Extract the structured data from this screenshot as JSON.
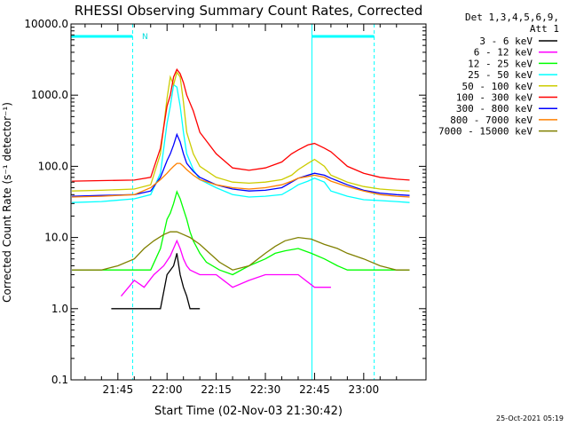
{
  "chart_data": {
    "type": "line",
    "title": "RHESSI Observing Summary Count Rates, Corrected",
    "xlabel": "Start Time (02-Nov-03 21:30:42)",
    "ylabel": "Corrected Count Rate (s⁻¹ detector⁻¹)",
    "yscale": "log",
    "ylim": [
      0.1,
      10000
    ],
    "y_ticks": [
      "0.1",
      "1.0",
      "10.0",
      "100.0",
      "1000.0",
      "10000.0"
    ],
    "x_ticks": [
      "21:45",
      "22:00",
      "22:15",
      "22:30",
      "22:45",
      "23:00"
    ],
    "x_tick_minutes": [
      45,
      60,
      75,
      90,
      105,
      120
    ],
    "xlim_minutes": [
      30.7,
      139
    ],
    "legend_header": [
      "Det 1,3,4,5,6,9,",
      "Att 1"
    ],
    "night_bars": [
      [
        30.7,
        49.5
      ],
      [
        104.2,
        123.2
      ]
    ],
    "saa_label": "N",
    "footer": "25-Oct-2021 05:19",
    "series": [
      {
        "name": "3 - 6 keV",
        "color": "#000000",
        "x": [
          43,
          49,
          55,
          58,
          60,
          62,
          63,
          64,
          65,
          66,
          67,
          70
        ],
        "y": [
          1.0,
          1.0,
          1.0,
          1.0,
          3.0,
          4.0,
          6.0,
          3.0,
          2.0,
          1.5,
          1.0,
          1.0
        ]
      },
      {
        "name": "6 - 12 keV",
        "color": "#ff00ff",
        "x": [
          46,
          50,
          53,
          56,
          59,
          61,
          63,
          64,
          65,
          66,
          67,
          70,
          75,
          80,
          85,
          90,
          95,
          100,
          105,
          110
        ],
        "y": [
          1.5,
          2.5,
          2.0,
          3.0,
          4.0,
          5.5,
          9.0,
          7.0,
          5.0,
          4.0,
          3.5,
          3.0,
          3.0,
          2.0,
          2.5,
          3.0,
          3.0,
          3.0,
          2.0,
          2.0
        ]
      },
      {
        "name": "12 - 25 keV",
        "color": "#00ff00",
        "x": [
          31,
          40,
          50,
          55,
          58,
          60,
          61,
          62,
          63,
          64,
          65,
          66,
          67,
          68,
          70,
          72,
          76,
          80,
          85,
          90,
          93,
          96,
          100,
          104,
          108,
          112,
          115,
          120,
          125,
          130,
          134
        ],
        "y": [
          3.5,
          3.5,
          3.5,
          3.5,
          7.0,
          18.0,
          22.0,
          30.0,
          44.0,
          35.0,
          25.0,
          18.0,
          12.0,
          9.0,
          6.0,
          4.5,
          3.5,
          3.0,
          4.0,
          5.0,
          6.0,
          6.5,
          7.0,
          6.0,
          5.0,
          4.0,
          3.5,
          3.5,
          3.5,
          3.5,
          3.5
        ]
      },
      {
        "name": "25 - 50 keV",
        "color": "#00ffff",
        "x": [
          31,
          40,
          50,
          55,
          58,
          60,
          61,
          62,
          63,
          64,
          65,
          66,
          68,
          70,
          75,
          80,
          85,
          90,
          95,
          98,
          100,
          103,
          105,
          108,
          110,
          115,
          120,
          125,
          130,
          134
        ],
        "y": [
          31,
          32,
          35,
          40,
          80,
          400,
          700,
          1400,
          1300,
          700,
          300,
          150,
          90,
          65,
          50,
          40,
          37,
          38,
          40,
          48,
          55,
          62,
          68,
          60,
          45,
          38,
          34,
          33,
          32,
          31
        ]
      },
      {
        "name": "50 - 100 keV",
        "color": "#cccc00",
        "x": [
          31,
          40,
          50,
          55,
          58,
          60,
          61,
          62,
          63,
          64,
          65,
          66,
          68,
          70,
          75,
          80,
          85,
          90,
          95,
          98,
          100,
          103,
          105,
          108,
          110,
          115,
          120,
          125,
          130,
          134
        ],
        "y": [
          45,
          46,
          48,
          55,
          150,
          900,
          1800,
          1400,
          2100,
          1800,
          800,
          300,
          150,
          100,
          70,
          60,
          58,
          60,
          65,
          75,
          90,
          110,
          125,
          100,
          75,
          60,
          52,
          48,
          46,
          45
        ]
      },
      {
        "name": "100 - 300 keV",
        "color": "#ff0000",
        "x": [
          31,
          40,
          50,
          55,
          58,
          60,
          61,
          62,
          63,
          64,
          65,
          66,
          68,
          70,
          75,
          80,
          85,
          90,
          95,
          98,
          100,
          103,
          105,
          108,
          110,
          115,
          120,
          125,
          130,
          134
        ],
        "y": [
          62,
          63,
          64,
          70,
          180,
          700,
          1000,
          1800,
          2300,
          2000,
          1500,
          1000,
          600,
          300,
          150,
          95,
          88,
          95,
          115,
          150,
          170,
          200,
          210,
          180,
          160,
          100,
          80,
          70,
          66,
          64
        ]
      },
      {
        "name": "300 - 800 keV",
        "color": "#0000ff",
        "x": [
          31,
          40,
          50,
          55,
          58,
          60,
          61,
          62,
          63,
          64,
          65,
          66,
          68,
          70,
          75,
          80,
          85,
          90,
          95,
          98,
          100,
          103,
          105,
          108,
          110,
          115,
          120,
          125,
          130,
          134
        ],
        "y": [
          38,
          39,
          40,
          45,
          70,
          120,
          150,
          200,
          280,
          220,
          150,
          110,
          85,
          70,
          55,
          48,
          45,
          46,
          50,
          60,
          68,
          75,
          80,
          75,
          68,
          55,
          46,
          42,
          40,
          39
        ]
      },
      {
        "name": "800 - 7000 keV",
        "color": "#ff8000",
        "x": [
          31,
          40,
          50,
          55,
          58,
          60,
          61,
          62,
          63,
          64,
          65,
          66,
          68,
          70,
          75,
          80,
          85,
          90,
          95,
          98,
          100,
          103,
          105,
          108,
          110,
          115,
          120,
          125,
          130,
          134
        ],
        "y": [
          37,
          38,
          40,
          50,
          65,
          80,
          90,
          100,
          110,
          110,
          100,
          90,
          75,
          65,
          55,
          50,
          48,
          50,
          55,
          62,
          68,
          72,
          75,
          70,
          62,
          52,
          45,
          40,
          38,
          37
        ]
      },
      {
        "name": "7000 - 15000 keV",
        "color": "#808000",
        "x": [
          31,
          40,
          45,
          50,
          53,
          56,
          59,
          61,
          63,
          65,
          67,
          70,
          73,
          76,
          80,
          85,
          90,
          93,
          96,
          100,
          104,
          108,
          112,
          115,
          120,
          125,
          130,
          134
        ],
        "y": [
          3.5,
          3.5,
          4.0,
          5.0,
          7.0,
          9.0,
          11.0,
          12.0,
          12.0,
          11.0,
          10.0,
          8.0,
          6.0,
          4.5,
          3.5,
          4.0,
          6.0,
          7.5,
          9.0,
          10.0,
          9.5,
          8.0,
          7.0,
          6.0,
          5.0,
          4.0,
          3.5,
          3.5
        ]
      }
    ]
  }
}
